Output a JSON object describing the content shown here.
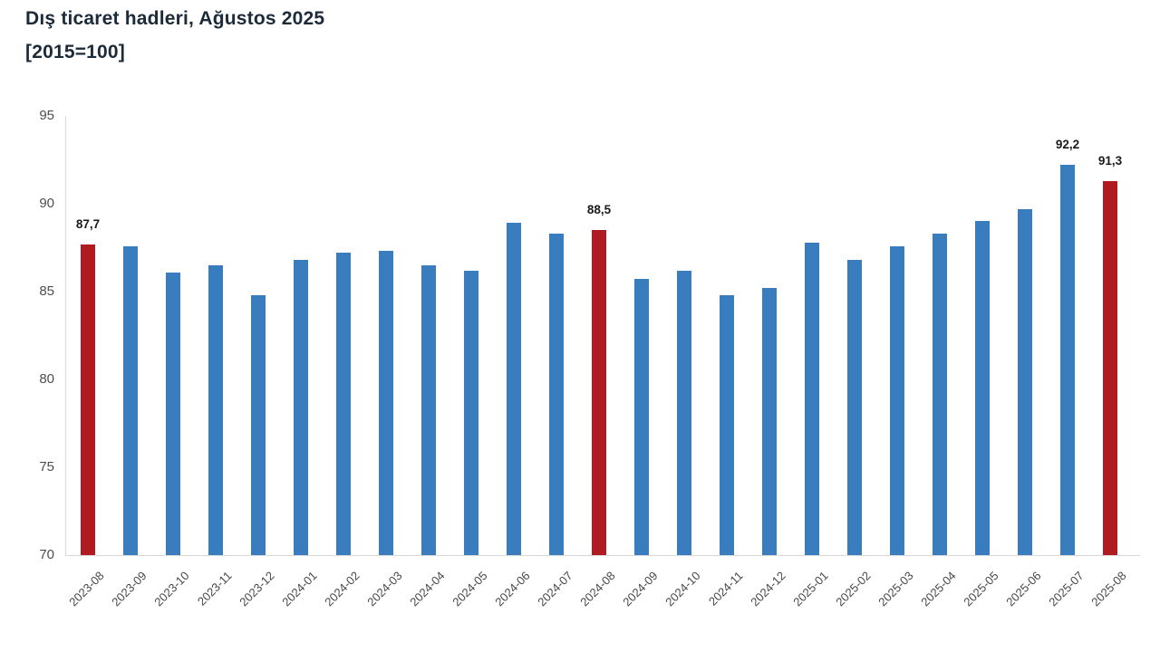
{
  "title": "Dış ticaret hadleri, Ağustos 2025",
  "subtitle": "[2015=100]",
  "chart_data": {
    "type": "bar",
    "title": "Dış ticaret hadleri, Ağustos 2025",
    "subtitle": "[2015=100]",
    "xlabel": "",
    "ylabel": "",
    "ylim": [
      70,
      95
    ],
    "yticks": [
      70,
      75,
      80,
      85,
      90,
      95
    ],
    "grid": false,
    "legend": false,
    "categories": [
      "2023-08",
      "2023-09",
      "2023-10",
      "2023-11",
      "2023-12",
      "2024-01",
      "2024-02",
      "2024-03",
      "2024-04",
      "2024-05",
      "2024-06",
      "2024-07",
      "2024-08",
      "2024-09",
      "2024-10",
      "2024-11",
      "2024-12",
      "2025-01",
      "2025-02",
      "2025-03",
      "2025-04",
      "2025-05",
      "2025-06",
      "2025-07",
      "2025-08"
    ],
    "values": [
      87.7,
      87.6,
      86.1,
      86.5,
      84.8,
      86.8,
      87.2,
      87.3,
      86.5,
      86.2,
      88.9,
      88.3,
      88.5,
      85.7,
      86.2,
      84.8,
      85.2,
      87.8,
      86.8,
      87.6,
      88.3,
      89.0,
      89.7,
      92.2,
      91.3
    ],
    "highlight_indices": [
      0,
      12,
      24
    ],
    "value_labels": {
      "0": "87,7",
      "12": "88,5",
      "23": "92,2",
      "24": "91,3"
    },
    "colors": {
      "bar": "#3a7dbe",
      "highlight": "#b01b21",
      "axis_line": "#d9d9d9",
      "tick_text": "#4e4e4e",
      "value_text": "#1a1a1a",
      "title_text": "#1c2b3a"
    }
  }
}
